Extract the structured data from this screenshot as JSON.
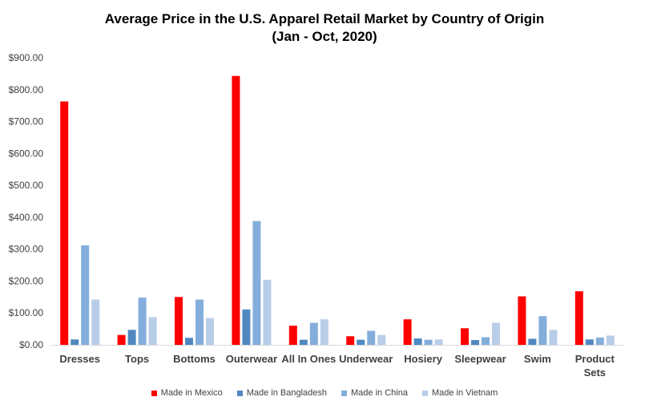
{
  "chart_data": {
    "type": "bar",
    "title": "Average Price in the U.S. Apparel Retail Market by Country of Origin",
    "subtitle": "(Jan - Oct, 2020)",
    "xlabel": "",
    "ylabel": "",
    "ylim": [
      0,
      900
    ],
    "yticks": [
      "$0.00",
      "$100.00",
      "$200.00",
      "$300.00",
      "$400.00",
      "$500.00",
      "$600.00",
      "$700.00",
      "$800.00",
      "$900.00"
    ],
    "categories": [
      "Dresses",
      "Tops",
      "Bottoms",
      "Outerwear",
      "All In Ones",
      "Underwear",
      "Hosiery",
      "Sleepwear",
      "Swim",
      "Product Sets"
    ],
    "series": [
      {
        "name": "Made in Mexico",
        "color": "#ff0000",
        "values": [
          763,
          31,
          150,
          843,
          60,
          27,
          80,
          52,
          152,
          168
        ]
      },
      {
        "name": "Made in Bangladesh",
        "color": "#4f89c0",
        "values": [
          17,
          47,
          22,
          111,
          16,
          16,
          20,
          15,
          19,
          17
        ]
      },
      {
        "name": "Made in China",
        "color": "#83aedb",
        "values": [
          312,
          148,
          142,
          388,
          69,
          44,
          16,
          24,
          90,
          23
        ]
      },
      {
        "name": "Made in Vietnam",
        "color": "#b8cde8",
        "values": [
          142,
          87,
          84,
          204,
          80,
          31,
          17,
          69,
          47,
          29
        ]
      }
    ],
    "grid": false,
    "legend_position": "bottom"
  }
}
